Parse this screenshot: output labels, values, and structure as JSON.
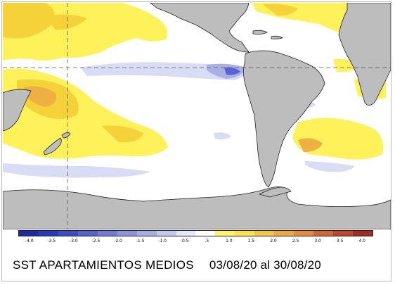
{
  "title": "SST APARTAMIENTOS MEDIOS",
  "date_range": "03/08/20 al 30/08/20",
  "colors": {
    "land": "#bdbdbd",
    "coast": "#222222",
    "grid_line": "#555555",
    "warm_light": "#fff15a",
    "warm_mid": "#f6d23a",
    "warm_orange": "#eeb042",
    "cool_light": "#d8dcf5",
    "cool_mid": "#a9b0e8",
    "cool_dark": "#5a63cf"
  },
  "legend": {
    "tick_labels": [
      "-4.0",
      "-3.5",
      "-3.0",
      "-2.5",
      "-2.0",
      "-1.5",
      "-1.0",
      "-0.5",
      ".5",
      "1.0",
      "1.5",
      "2.0",
      "2.5",
      "3.0",
      "3.5",
      "4.0"
    ],
    "bins": [
      "#1c2aa8",
      "#2638c0",
      "#3b4cc8",
      "#5462cf",
      "#6f7bd6",
      "#8b95de",
      "#a6aee6",
      "#c3c8ef",
      "#e3e6f9",
      "#ffffff",
      "#fff36b",
      "#ffe04d",
      "#f6c544",
      "#efa83f",
      "#e88a3a",
      "#d46433",
      "#bf462b",
      "#a52a22"
    ]
  }
}
